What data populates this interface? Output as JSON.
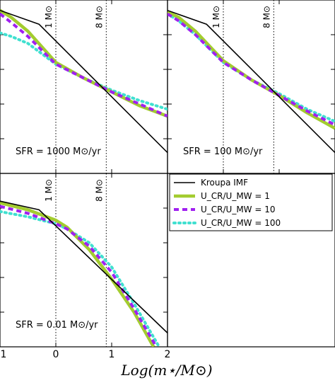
{
  "figure": {
    "xlabel": "Log(m⋆/M⊙)",
    "xticks": [
      -1,
      0,
      1,
      2
    ],
    "xtick_labels": [
      "1",
      "0",
      "1",
      "2"
    ],
    "xlim": [
      -1,
      2
    ],
    "ylim": [
      0,
      1
    ]
  },
  "vlines": [
    {
      "x": 0,
      "label": "1 M⊙"
    },
    {
      "x": 0.903,
      "label": "8 M⊙"
    }
  ],
  "legend": {
    "placement": "top of bottom-right panel",
    "entries": [
      {
        "label": "Kroupa IMF",
        "color": "#000000",
        "style": "solid"
      },
      {
        "label": "U_CR/U_MW = 1",
        "color": "#a3cc2f",
        "style": "solid-thick"
      },
      {
        "label": "U_CR/U_MW = 10",
        "color": "#a020f0",
        "style": "dashed"
      },
      {
        "label": "U_CR/U_MW = 100",
        "color": "#40e0d0",
        "style": "dotted"
      }
    ]
  },
  "colors": {
    "kroupa": "#000000",
    "ucr1": "#a3cc2f",
    "ucr10": "#a020f0",
    "ucr100": "#40e0d0"
  },
  "chart_data": [
    {
      "type": "line",
      "panel": "top-left",
      "annotation": "SFR = 1000 M⊙/yr",
      "xlim": [
        -1,
        2
      ],
      "series": [
        {
          "name": "Kroupa IMF",
          "x": [
            -1,
            -0.3,
            2
          ],
          "y": [
            0.94,
            0.86,
            0.12
          ]
        },
        {
          "name": "U_CR/U_MW = 1",
          "x": [
            -1,
            -0.8,
            -0.5,
            0,
            0.5,
            1.0,
            1.5,
            2.0
          ],
          "y": [
            0.94,
            0.9,
            0.82,
            0.64,
            0.55,
            0.47,
            0.39,
            0.33
          ]
        },
        {
          "name": "U_CR/U_MW = 10",
          "x": [
            -1,
            -0.8,
            -0.5,
            0,
            0.5,
            1.0,
            1.5,
            2.0
          ],
          "y": [
            0.92,
            0.87,
            0.79,
            0.63,
            0.55,
            0.47,
            0.4,
            0.33
          ]
        },
        {
          "name": "U_CR/U_MW = 100",
          "x": [
            -1,
            -0.8,
            -0.5,
            0,
            0.5,
            1.0,
            1.5,
            2.0
          ],
          "y": [
            0.81,
            0.79,
            0.75,
            0.63,
            0.55,
            0.48,
            0.42,
            0.37
          ]
        }
      ]
    },
    {
      "type": "line",
      "panel": "top-right",
      "annotation": "SFR = 100 M⊙/yr",
      "xlim": [
        -1,
        2
      ],
      "series": [
        {
          "name": "Kroupa IMF",
          "x": [
            -1,
            -0.3,
            2
          ],
          "y": [
            0.94,
            0.86,
            0.12
          ]
        },
        {
          "name": "U_CR/U_MW = 1",
          "x": [
            -1,
            -0.8,
            -0.5,
            0,
            0.5,
            1.0,
            1.5,
            2.0
          ],
          "y": [
            0.93,
            0.9,
            0.82,
            0.65,
            0.54,
            0.45,
            0.35,
            0.26
          ]
        },
        {
          "name": "U_CR/U_MW = 10",
          "x": [
            -1,
            -0.8,
            -0.5,
            0,
            0.5,
            1.0,
            1.5,
            2.0
          ],
          "y": [
            0.92,
            0.88,
            0.8,
            0.64,
            0.54,
            0.45,
            0.36,
            0.28
          ]
        },
        {
          "name": "U_CR/U_MW = 100",
          "x": [
            -1,
            -0.8,
            -0.5,
            0,
            0.5,
            1.0,
            1.5,
            2.0
          ],
          "y": [
            0.92,
            0.88,
            0.8,
            0.64,
            0.54,
            0.46,
            0.37,
            0.3
          ]
        }
      ]
    },
    {
      "type": "line",
      "panel": "bottom-left",
      "annotation": "SFR = 0.01 M⊙/yr",
      "xlim": [
        -1,
        2
      ],
      "series": [
        {
          "name": "Kroupa IMF",
          "x": [
            -1,
            -0.3,
            2
          ],
          "y": [
            0.84,
            0.79,
            0.08
          ]
        },
        {
          "name": "U_CR/U_MW = 1",
          "x": [
            -1,
            -0.5,
            0,
            0.2,
            0.6,
            1.0,
            1.4,
            1.75
          ],
          "y": [
            0.83,
            0.79,
            0.73,
            0.69,
            0.56,
            0.39,
            0.2,
            0.0
          ]
        },
        {
          "name": "U_CR/U_MW = 10",
          "x": [
            -1,
            -0.5,
            0,
            0.2,
            0.6,
            1.0,
            1.4,
            1.8
          ],
          "y": [
            0.81,
            0.77,
            0.71,
            0.68,
            0.58,
            0.43,
            0.22,
            0.0
          ]
        },
        {
          "name": "U_CR/U_MW = 100",
          "x": [
            -1,
            -0.5,
            0,
            0.2,
            0.6,
            1.0,
            1.4,
            1.85
          ],
          "y": [
            0.78,
            0.75,
            0.71,
            0.68,
            0.6,
            0.46,
            0.25,
            0.0
          ]
        }
      ]
    }
  ]
}
